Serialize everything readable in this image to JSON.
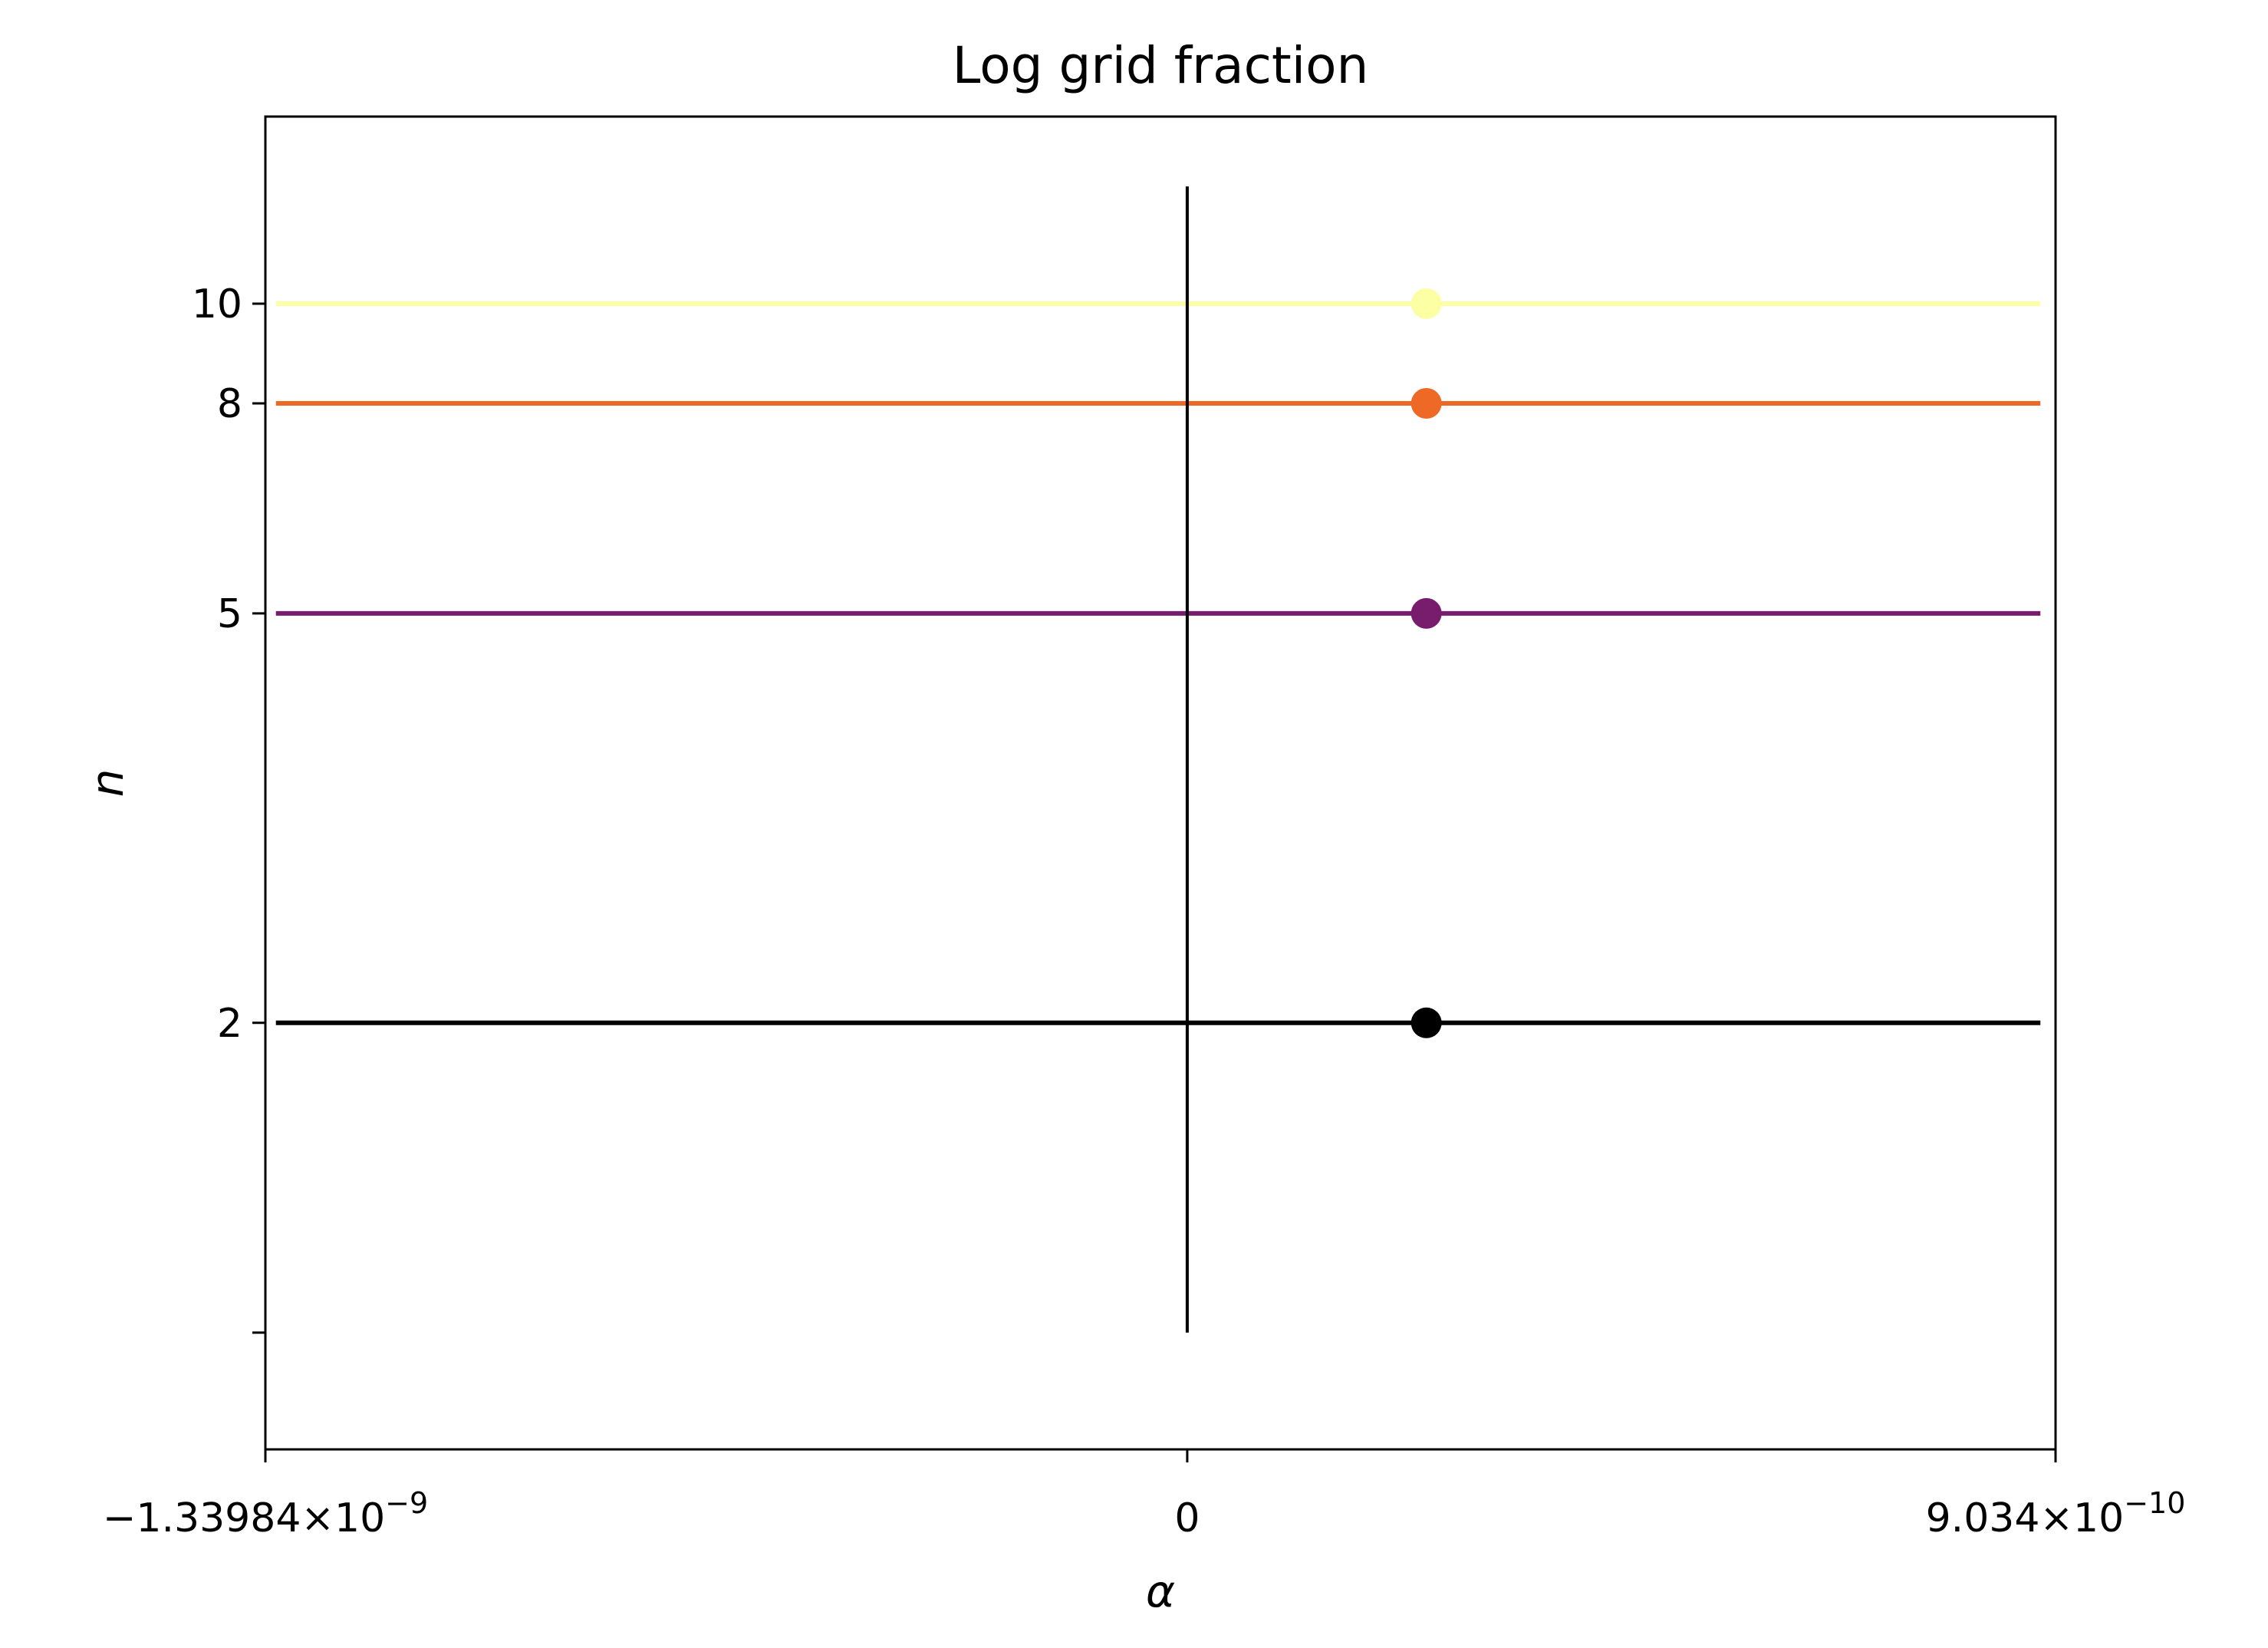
{
  "chart_data": {
    "type": "line",
    "title": "Log grid fraction",
    "xlabel": "α",
    "ylabel": "n",
    "x_scale": "symlog",
    "y_scale": "log",
    "xlim": [
      -1.33984e-09,
      9.034e-10
    ],
    "ylim": [
      0.77,
      15.2
    ],
    "x_ticks": [
      {
        "value": -1.33984e-09,
        "mantissa": "−1.33984",
        "times": "×",
        "base": "10",
        "exponent": "−9"
      },
      {
        "value": 0,
        "mantissa": "0",
        "times": "",
        "base": "",
        "exponent": ""
      },
      {
        "value": 9.034e-10,
        "mantissa": "9.034",
        "times": "×",
        "base": "10",
        "exponent": "−10"
      }
    ],
    "y_ticks": [
      {
        "value": 1,
        "label": ""
      },
      {
        "value": 2,
        "label": "2"
      },
      {
        "value": 5,
        "label": "5"
      },
      {
        "value": 8,
        "label": "8"
      },
      {
        "value": 10,
        "label": "10"
      }
    ],
    "vline": {
      "x": 0,
      "y_range": [
        1,
        13
      ],
      "color": "#000000"
    },
    "series": [
      {
        "n": 2,
        "x": [
          -1.24e-09,
          8.08e-10
        ],
        "marker_x": 4.2e-11,
        "color": "#000000"
      },
      {
        "n": 5,
        "x": [
          -1.24e-09,
          8.08e-10
        ],
        "marker_x": 4.2e-11,
        "color": "#781c6d"
      },
      {
        "n": 8,
        "x": [
          -1.24e-09,
          8.08e-10
        ],
        "marker_x": 4.2e-11,
        "color": "#ed6925"
      },
      {
        "n": 10,
        "x": [
          -1.24e-09,
          8.08e-10
        ],
        "marker_x": 4.2e-11,
        "color": "#fcffa4"
      }
    ],
    "grid": false,
    "legend": "none"
  }
}
